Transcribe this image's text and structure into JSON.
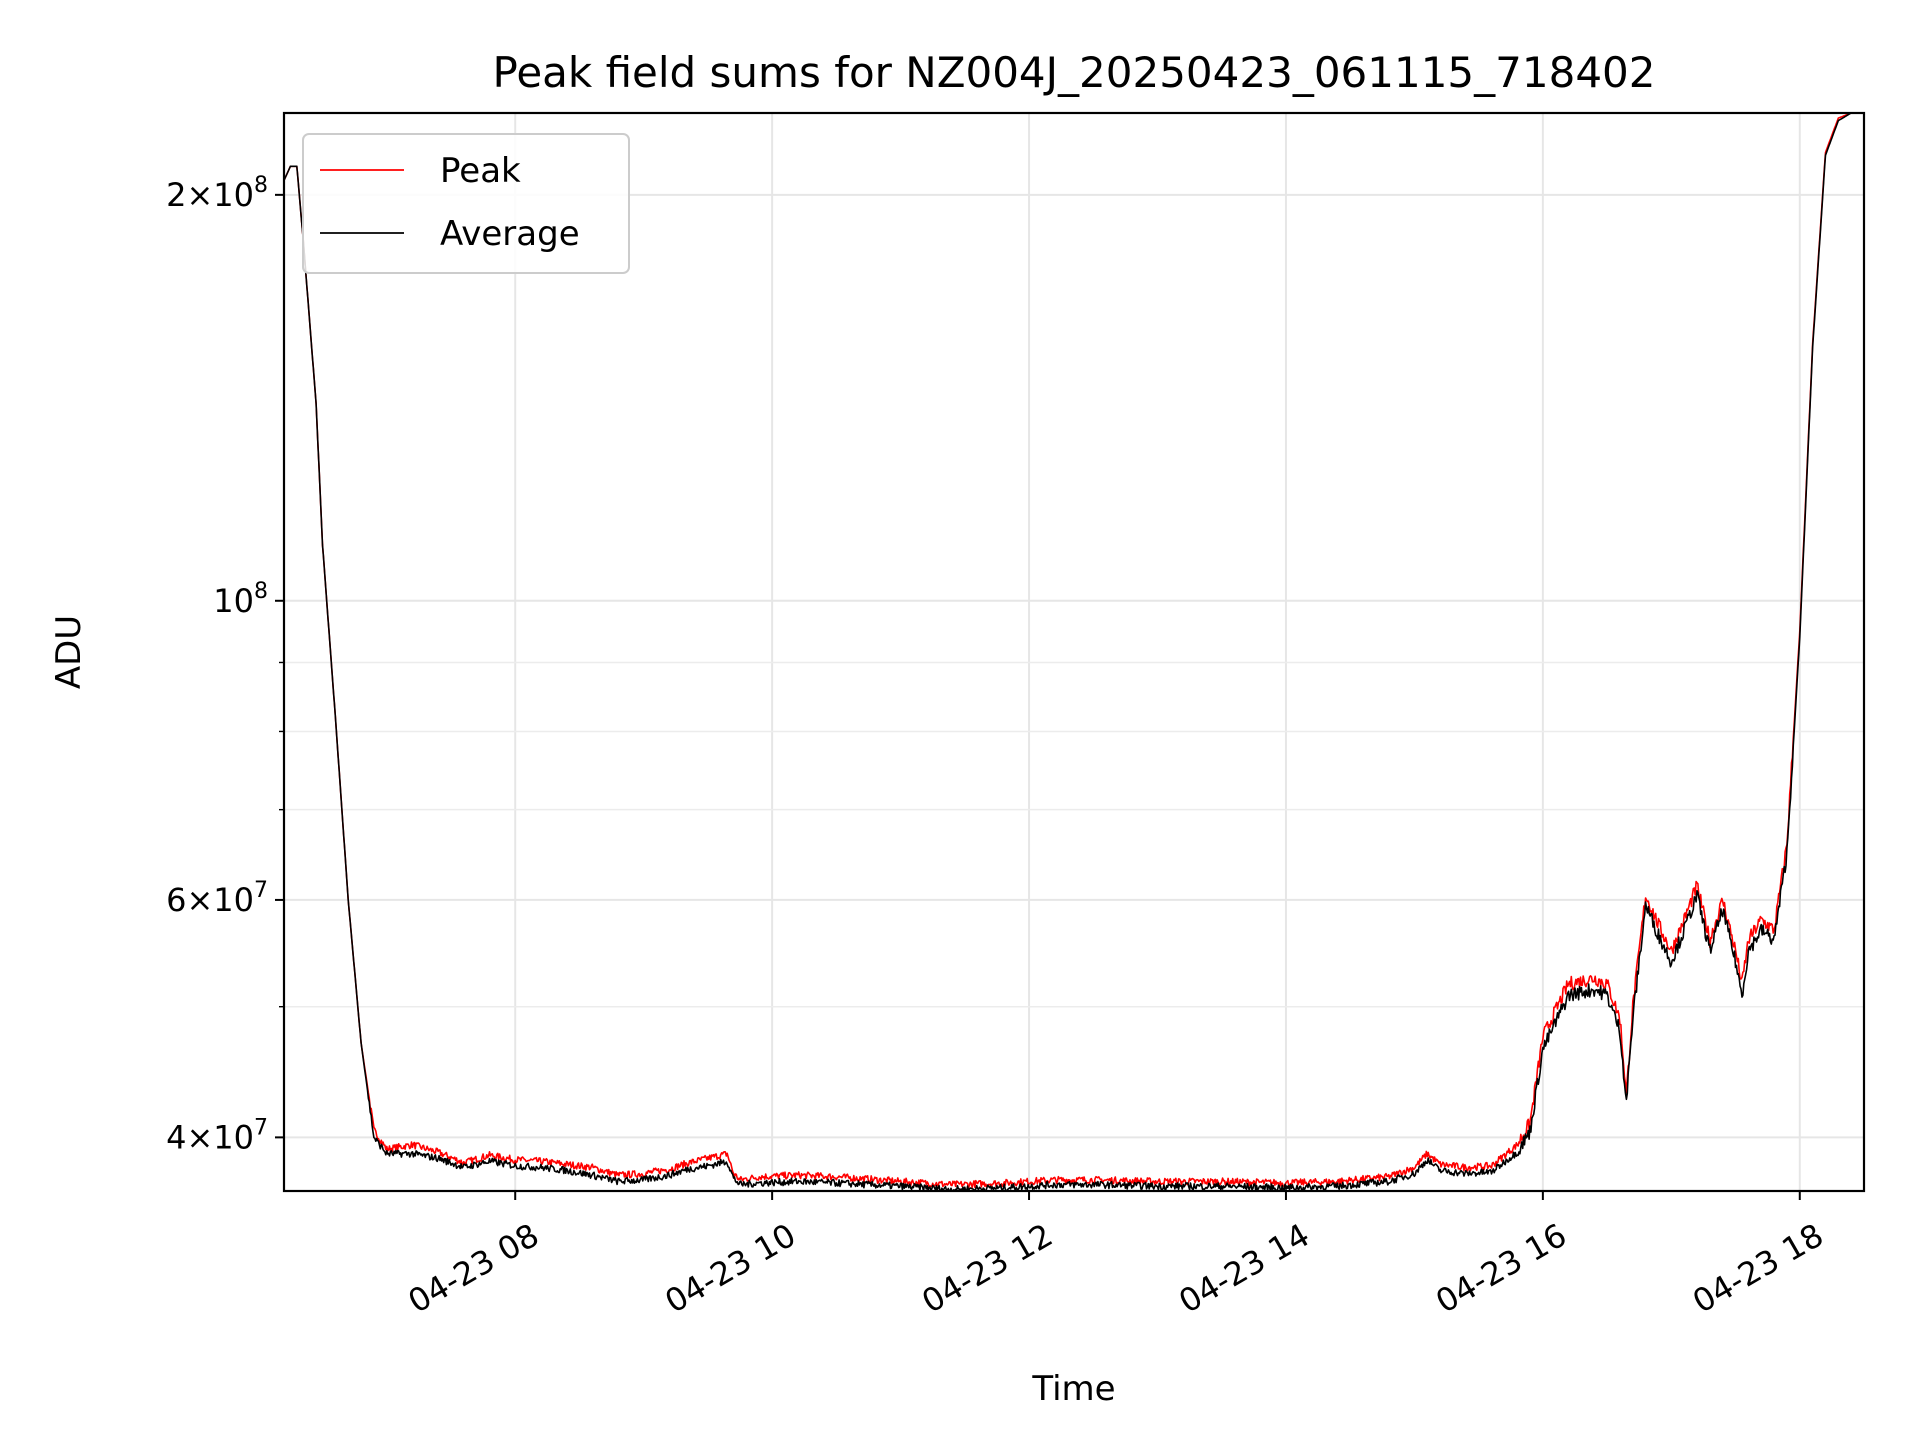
{
  "chart_data": {
    "type": "line",
    "title": "Peak field sums for NZ004J_20250423_061115_718402",
    "xlabel": "Time",
    "ylabel": "ADU",
    "x_unit": "hour of 2025-04-23",
    "xlim": [
      6.2,
      18.5
    ],
    "ylim": [
      36500000,
      230000000
    ],
    "yscale": "log",
    "grid": true,
    "legend_position": "upper-left",
    "x_ticks": [
      {
        "value": 8,
        "label": "04-23 08"
      },
      {
        "value": 10,
        "label": "04-23 10"
      },
      {
        "value": 12,
        "label": "04-23 12"
      },
      {
        "value": 14,
        "label": "04-23 14"
      },
      {
        "value": 16,
        "label": "04-23 16"
      },
      {
        "value": 18,
        "label": "04-23 18"
      }
    ],
    "y_ticks": [
      {
        "value": 40000000,
        "base": "4",
        "exp": "7"
      },
      {
        "value": 60000000,
        "base": "6",
        "exp": "7"
      },
      {
        "value": 100000000,
        "base": "",
        "exp": "8"
      },
      {
        "value": 200000000,
        "base": "2",
        "exp": "8"
      }
    ],
    "y_minor_ticks": [
      50000000,
      70000000,
      80000000,
      90000000
    ],
    "series": [
      {
        "name": "Peak",
        "color": "#ff0000",
        "x": [
          6.2,
          6.25,
          6.3,
          6.35,
          6.45,
          6.5,
          6.6,
          6.7,
          6.8,
          6.9,
          7.0,
          7.2,
          7.4,
          7.6,
          7.8,
          8.0,
          8.2,
          8.4,
          8.6,
          8.8,
          9.0,
          9.2,
          9.35,
          9.5,
          9.65,
          9.7,
          9.75,
          9.9,
          10.2,
          10.5,
          11.0,
          11.4,
          11.8,
          12.2,
          12.5,
          13.0,
          13.5,
          14.0,
          14.4,
          14.8,
          15.0,
          15.1,
          15.2,
          15.4,
          15.6,
          15.8,
          15.9,
          16.0,
          16.2,
          16.4,
          16.5,
          16.6,
          16.65,
          16.7,
          16.8,
          16.9,
          17.0,
          17.1,
          17.2,
          17.3,
          17.4,
          17.5,
          17.55,
          17.6,
          17.7,
          17.8,
          17.9,
          18.0,
          18.1,
          18.2,
          18.3,
          18.4,
          18.5
        ],
        "y": [
          205000000,
          210000000,
          210000000,
          185000000,
          140000000,
          110000000,
          82000000,
          60000000,
          47000000,
          40500000,
          39200000,
          39500000,
          39000000,
          38300000,
          38800000,
          38500000,
          38400000,
          38200000,
          38000000,
          37500000,
          37600000,
          37900000,
          38300000,
          38600000,
          38900000,
          37600000,
          37200000,
          37400000,
          37500000,
          37400000,
          37100000,
          36900000,
          37000000,
          37200000,
          37200000,
          37100000,
          37100000,
          37000000,
          37100000,
          37400000,
          38000000,
          38900000,
          38200000,
          38000000,
          38100000,
          39500000,
          41000000,
          47500000,
          52000000,
          52500000,
          52000000,
          49000000,
          43000000,
          50000000,
          60500000,
          57500000,
          55000000,
          58000000,
          61500000,
          56000000,
          60000000,
          55000000,
          52000000,
          56000000,
          58000000,
          57000000,
          66000000,
          95000000,
          155000000,
          215000000,
          228000000,
          230000000,
          230000000
        ]
      },
      {
        "name": "Average",
        "color": "#000000",
        "x": [
          6.2,
          6.25,
          6.3,
          6.35,
          6.45,
          6.5,
          6.6,
          6.7,
          6.8,
          6.9,
          7.0,
          7.2,
          7.4,
          7.6,
          7.8,
          8.0,
          8.2,
          8.4,
          8.6,
          8.8,
          9.0,
          9.2,
          9.35,
          9.5,
          9.65,
          9.7,
          9.75,
          9.9,
          10.2,
          10.5,
          11.0,
          11.4,
          11.8,
          12.2,
          12.5,
          13.0,
          13.5,
          14.0,
          14.4,
          14.8,
          15.0,
          15.1,
          15.2,
          15.4,
          15.6,
          15.8,
          15.9,
          16.0,
          16.2,
          16.4,
          16.5,
          16.6,
          16.65,
          16.7,
          16.8,
          16.9,
          17.0,
          17.1,
          17.2,
          17.3,
          17.4,
          17.5,
          17.55,
          17.6,
          17.7,
          17.8,
          17.9,
          18.0,
          18.1,
          18.2,
          18.3,
          18.4,
          18.5
        ],
        "y": [
          205000000,
          210000000,
          210000000,
          185000000,
          140000000,
          110000000,
          82000000,
          60000000,
          47000000,
          40000000,
          38900000,
          38900000,
          38600000,
          38000000,
          38400000,
          38100000,
          38000000,
          37800000,
          37500000,
          37100000,
          37200000,
          37500000,
          37900000,
          38100000,
          38400000,
          37300000,
          36900000,
          37000000,
          37100000,
          37000000,
          36800000,
          36600000,
          36700000,
          36900000,
          36900000,
          36800000,
          36800000,
          36700000,
          36800000,
          37100000,
          37600000,
          38500000,
          37800000,
          37600000,
          37700000,
          39000000,
          40400000,
          46500000,
          51000000,
          51500000,
          51000000,
          48000000,
          42500000,
          49000000,
          59500000,
          56500000,
          54000000,
          57000000,
          60500000,
          55000000,
          59000000,
          54000000,
          51000000,
          55000000,
          57000000,
          56000000,
          65000000,
          94000000,
          154000000,
          214000000,
          227000000,
          230000000,
          230000000
        ]
      }
    ]
  }
}
